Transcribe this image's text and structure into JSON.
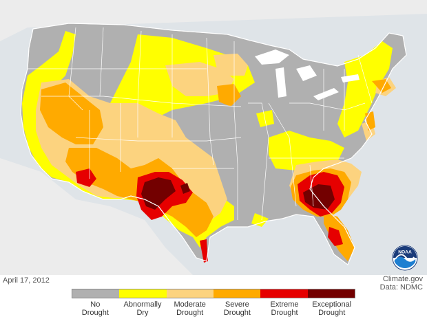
{
  "date": "April 17, 2012",
  "credit": {
    "site": "Climate.gov",
    "data_source": "Data: NDMC"
  },
  "logo": {
    "text": "NOAA",
    "icon": "noaa-logo-icon"
  },
  "legend": {
    "items": [
      {
        "line1": "No",
        "line2": "Drought",
        "color": "#b0b0b0"
      },
      {
        "line1": "Abnormally",
        "line2": "Dry",
        "color": "#ffff00"
      },
      {
        "line1": "Moderate",
        "line2": "Drought",
        "color": "#fcd37f"
      },
      {
        "line1": "Severe",
        "line2": "Drought",
        "color": "#ffaa00"
      },
      {
        "line1": "Extreme",
        "line2": "Drought",
        "color": "#e60000"
      },
      {
        "line1": "Exceptional",
        "line2": "Drought",
        "color": "#730000"
      }
    ]
  }
}
